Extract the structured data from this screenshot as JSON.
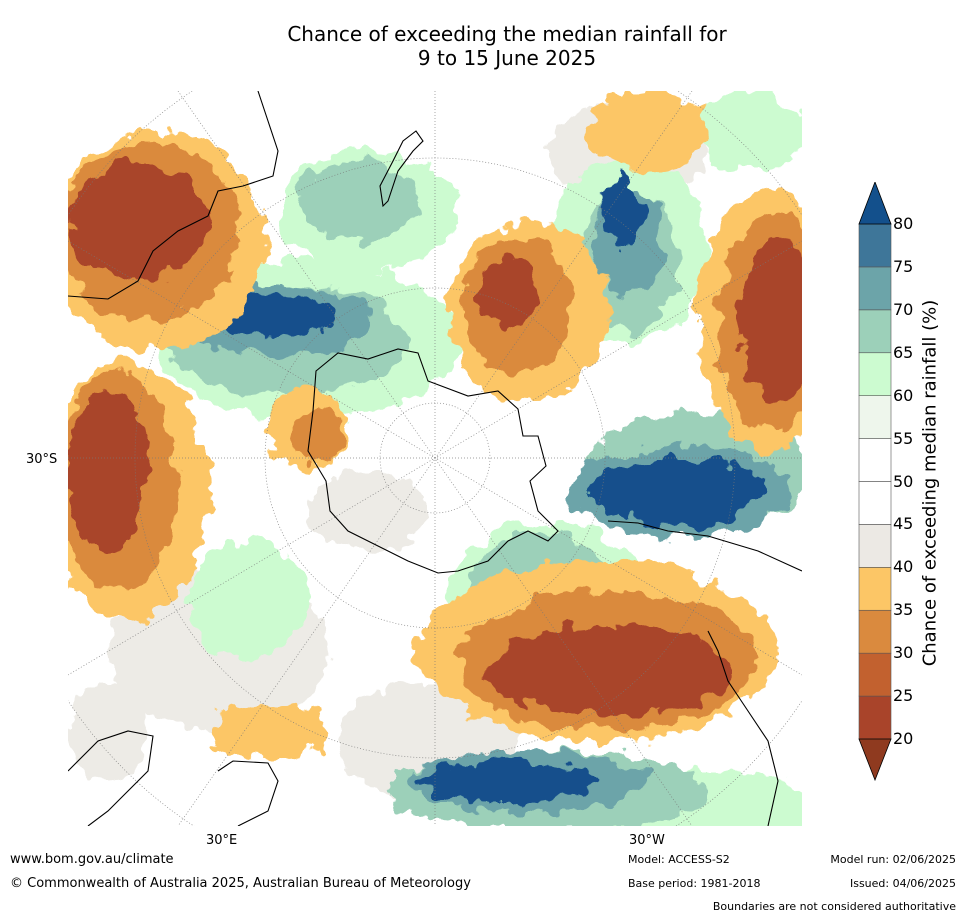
{
  "title_line1": "Chance of exceeding the median rainfall for",
  "title_line2": "9 to 15 June 2025",
  "lat_label": "30°S",
  "lon_labels": [
    "30°E",
    "30°W"
  ],
  "colorbar": {
    "title": "Chance of exceeding median rainfall (%)",
    "ticks": [
      "20",
      "25",
      "30",
      "35",
      "40",
      "45",
      "50",
      "55",
      "60",
      "65",
      "70",
      "75",
      "80"
    ],
    "colors": [
      "#a9442a",
      "#c2612f",
      "#da8a3e",
      "#fcc666",
      "#ece9e4",
      "#ffffff",
      "#ffffff",
      "#eef6ec",
      "#ccfbd0",
      "#9cd0b9",
      "#6ca4a9",
      "#3e7699"
    ],
    "under_color": "#8f3a1f",
    "over_color": "#13508c"
  },
  "footer": {
    "url": "www.bom.gov.au/climate",
    "copyright": "© Commonwealth of Australia 2025, Australian Bureau of Meteorology",
    "model": "Model: ACCESS-S2",
    "base_period": "Base period: 1981-2018",
    "model_run": "Model run: 02/06/2025",
    "issued": "Issued: 04/06/2025",
    "disclaimer": "Boundaries are not considered authoritative"
  }
}
